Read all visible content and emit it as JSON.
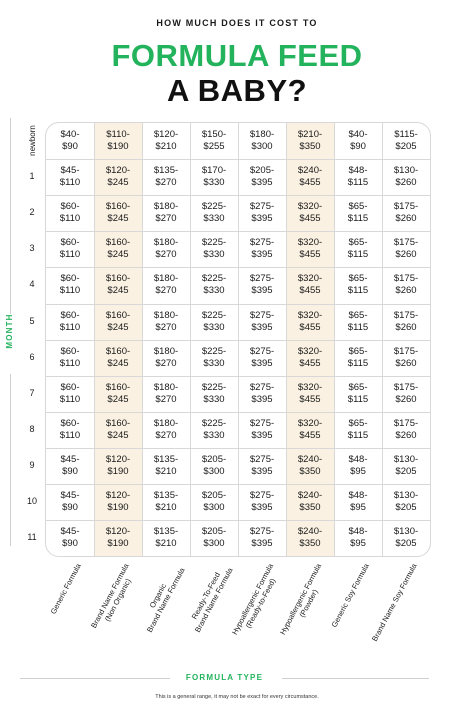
{
  "header": {
    "kicker": "HOW MUCH DOES IT COST TO",
    "title_line1": "FORMULA FEED",
    "title_line2": "A BABY?"
  },
  "axes": {
    "y_label": "MONTH",
    "x_label": "FORMULA TYPE"
  },
  "rows": [
    "newborn",
    "1",
    "2",
    "3",
    "4",
    "5",
    "6",
    "7",
    "8",
    "9",
    "10",
    "11"
  ],
  "columns": [
    [
      "Generic Formula"
    ],
    [
      "Brand Name Formula",
      "(Non Organic)"
    ],
    [
      "Organic",
      "Brand Name Formula"
    ],
    [
      "Ready-To-Feed",
      "Brand Name Formula"
    ],
    [
      "Hypoallergenic Formula",
      "(Ready-to-Feed)"
    ],
    [
      "Hypoallergenic Formula",
      "(Powder)"
    ],
    [
      "Generic Soy Formula"
    ],
    [
      "Brand Name Soy Formula"
    ]
  ],
  "table": [
    [
      [
        "$40-",
        "$90"
      ],
      [
        "$110-",
        "$190"
      ],
      [
        "$120-",
        "$210"
      ],
      [
        "$150-",
        "$255"
      ],
      [
        "$180-",
        "$300"
      ],
      [
        "$210-",
        "$350"
      ],
      [
        "$40-",
        "$90"
      ],
      [
        "$115-",
        "$205"
      ]
    ],
    [
      [
        "$45-",
        "$110"
      ],
      [
        "$120-",
        "$245"
      ],
      [
        "$135-",
        "$270"
      ],
      [
        "$170-",
        "$330"
      ],
      [
        "$205-",
        "$395"
      ],
      [
        "$240-",
        "$455"
      ],
      [
        "$48-",
        "$115"
      ],
      [
        "$130-",
        "$260"
      ]
    ],
    [
      [
        "$60-",
        "$110"
      ],
      [
        "$160-",
        "$245"
      ],
      [
        "$180-",
        "$270"
      ],
      [
        "$225-",
        "$330"
      ],
      [
        "$275-",
        "$395"
      ],
      [
        "$320-",
        "$455"
      ],
      [
        "$65-",
        "$115"
      ],
      [
        "$175-",
        "$260"
      ]
    ],
    [
      [
        "$60-",
        "$110"
      ],
      [
        "$160-",
        "$245"
      ],
      [
        "$180-",
        "$270"
      ],
      [
        "$225-",
        "$330"
      ],
      [
        "$275-",
        "$395"
      ],
      [
        "$320-",
        "$455"
      ],
      [
        "$65-",
        "$115"
      ],
      [
        "$175-",
        "$260"
      ]
    ],
    [
      [
        "$60-",
        "$110"
      ],
      [
        "$160-",
        "$245"
      ],
      [
        "$180-",
        "$270"
      ],
      [
        "$225-",
        "$330"
      ],
      [
        "$275-",
        "$395"
      ],
      [
        "$320-",
        "$455"
      ],
      [
        "$65-",
        "$115"
      ],
      [
        "$175-",
        "$260"
      ]
    ],
    [
      [
        "$60-",
        "$110"
      ],
      [
        "$160-",
        "$245"
      ],
      [
        "$180-",
        "$270"
      ],
      [
        "$225-",
        "$330"
      ],
      [
        "$275-",
        "$395"
      ],
      [
        "$320-",
        "$455"
      ],
      [
        "$65-",
        "$115"
      ],
      [
        "$175-",
        "$260"
      ]
    ],
    [
      [
        "$60-",
        "$110"
      ],
      [
        "$160-",
        "$245"
      ],
      [
        "$180-",
        "$270"
      ],
      [
        "$225-",
        "$330"
      ],
      [
        "$275-",
        "$395"
      ],
      [
        "$320-",
        "$455"
      ],
      [
        "$65-",
        "$115"
      ],
      [
        "$175-",
        "$260"
      ]
    ],
    [
      [
        "$60-",
        "$110"
      ],
      [
        "$160-",
        "$245"
      ],
      [
        "$180-",
        "$270"
      ],
      [
        "$225-",
        "$330"
      ],
      [
        "$275-",
        "$395"
      ],
      [
        "$320-",
        "$455"
      ],
      [
        "$65-",
        "$115"
      ],
      [
        "$175-",
        "$260"
      ]
    ],
    [
      [
        "$60-",
        "$110"
      ],
      [
        "$160-",
        "$245"
      ],
      [
        "$180-",
        "$270"
      ],
      [
        "$225-",
        "$330"
      ],
      [
        "$275-",
        "$395"
      ],
      [
        "$320-",
        "$455"
      ],
      [
        "$65-",
        "$115"
      ],
      [
        "$175-",
        "$260"
      ]
    ],
    [
      [
        "$45-",
        "$90"
      ],
      [
        "$120-",
        "$190"
      ],
      [
        "$135-",
        "$210"
      ],
      [
        "$205-",
        "$300"
      ],
      [
        "$275-",
        "$395"
      ],
      [
        "$240-",
        "$350"
      ],
      [
        "$48-",
        "$95"
      ],
      [
        "$130-",
        "$205"
      ]
    ],
    [
      [
        "$45-",
        "$90"
      ],
      [
        "$120-",
        "$190"
      ],
      [
        "$135-",
        "$210"
      ],
      [
        "$205-",
        "$300"
      ],
      [
        "$275-",
        "$395"
      ],
      [
        "$240-",
        "$350"
      ],
      [
        "$48-",
        "$95"
      ],
      [
        "$130-",
        "$205"
      ]
    ],
    [
      [
        "$45-",
        "$90"
      ],
      [
        "$120-",
        "$190"
      ],
      [
        "$135-",
        "$210"
      ],
      [
        "$205-",
        "$300"
      ],
      [
        "$275-",
        "$395"
      ],
      [
        "$240-",
        "$350"
      ],
      [
        "$48-",
        "$95"
      ],
      [
        "$130-",
        "$205"
      ]
    ]
  ],
  "footnote": "This is a general range, it may not be exact for every circumstance.",
  "colors": {
    "accent_green": "#22b35c",
    "highlight_column": "#faf1e2",
    "gridline": "#d8d8d8"
  }
}
